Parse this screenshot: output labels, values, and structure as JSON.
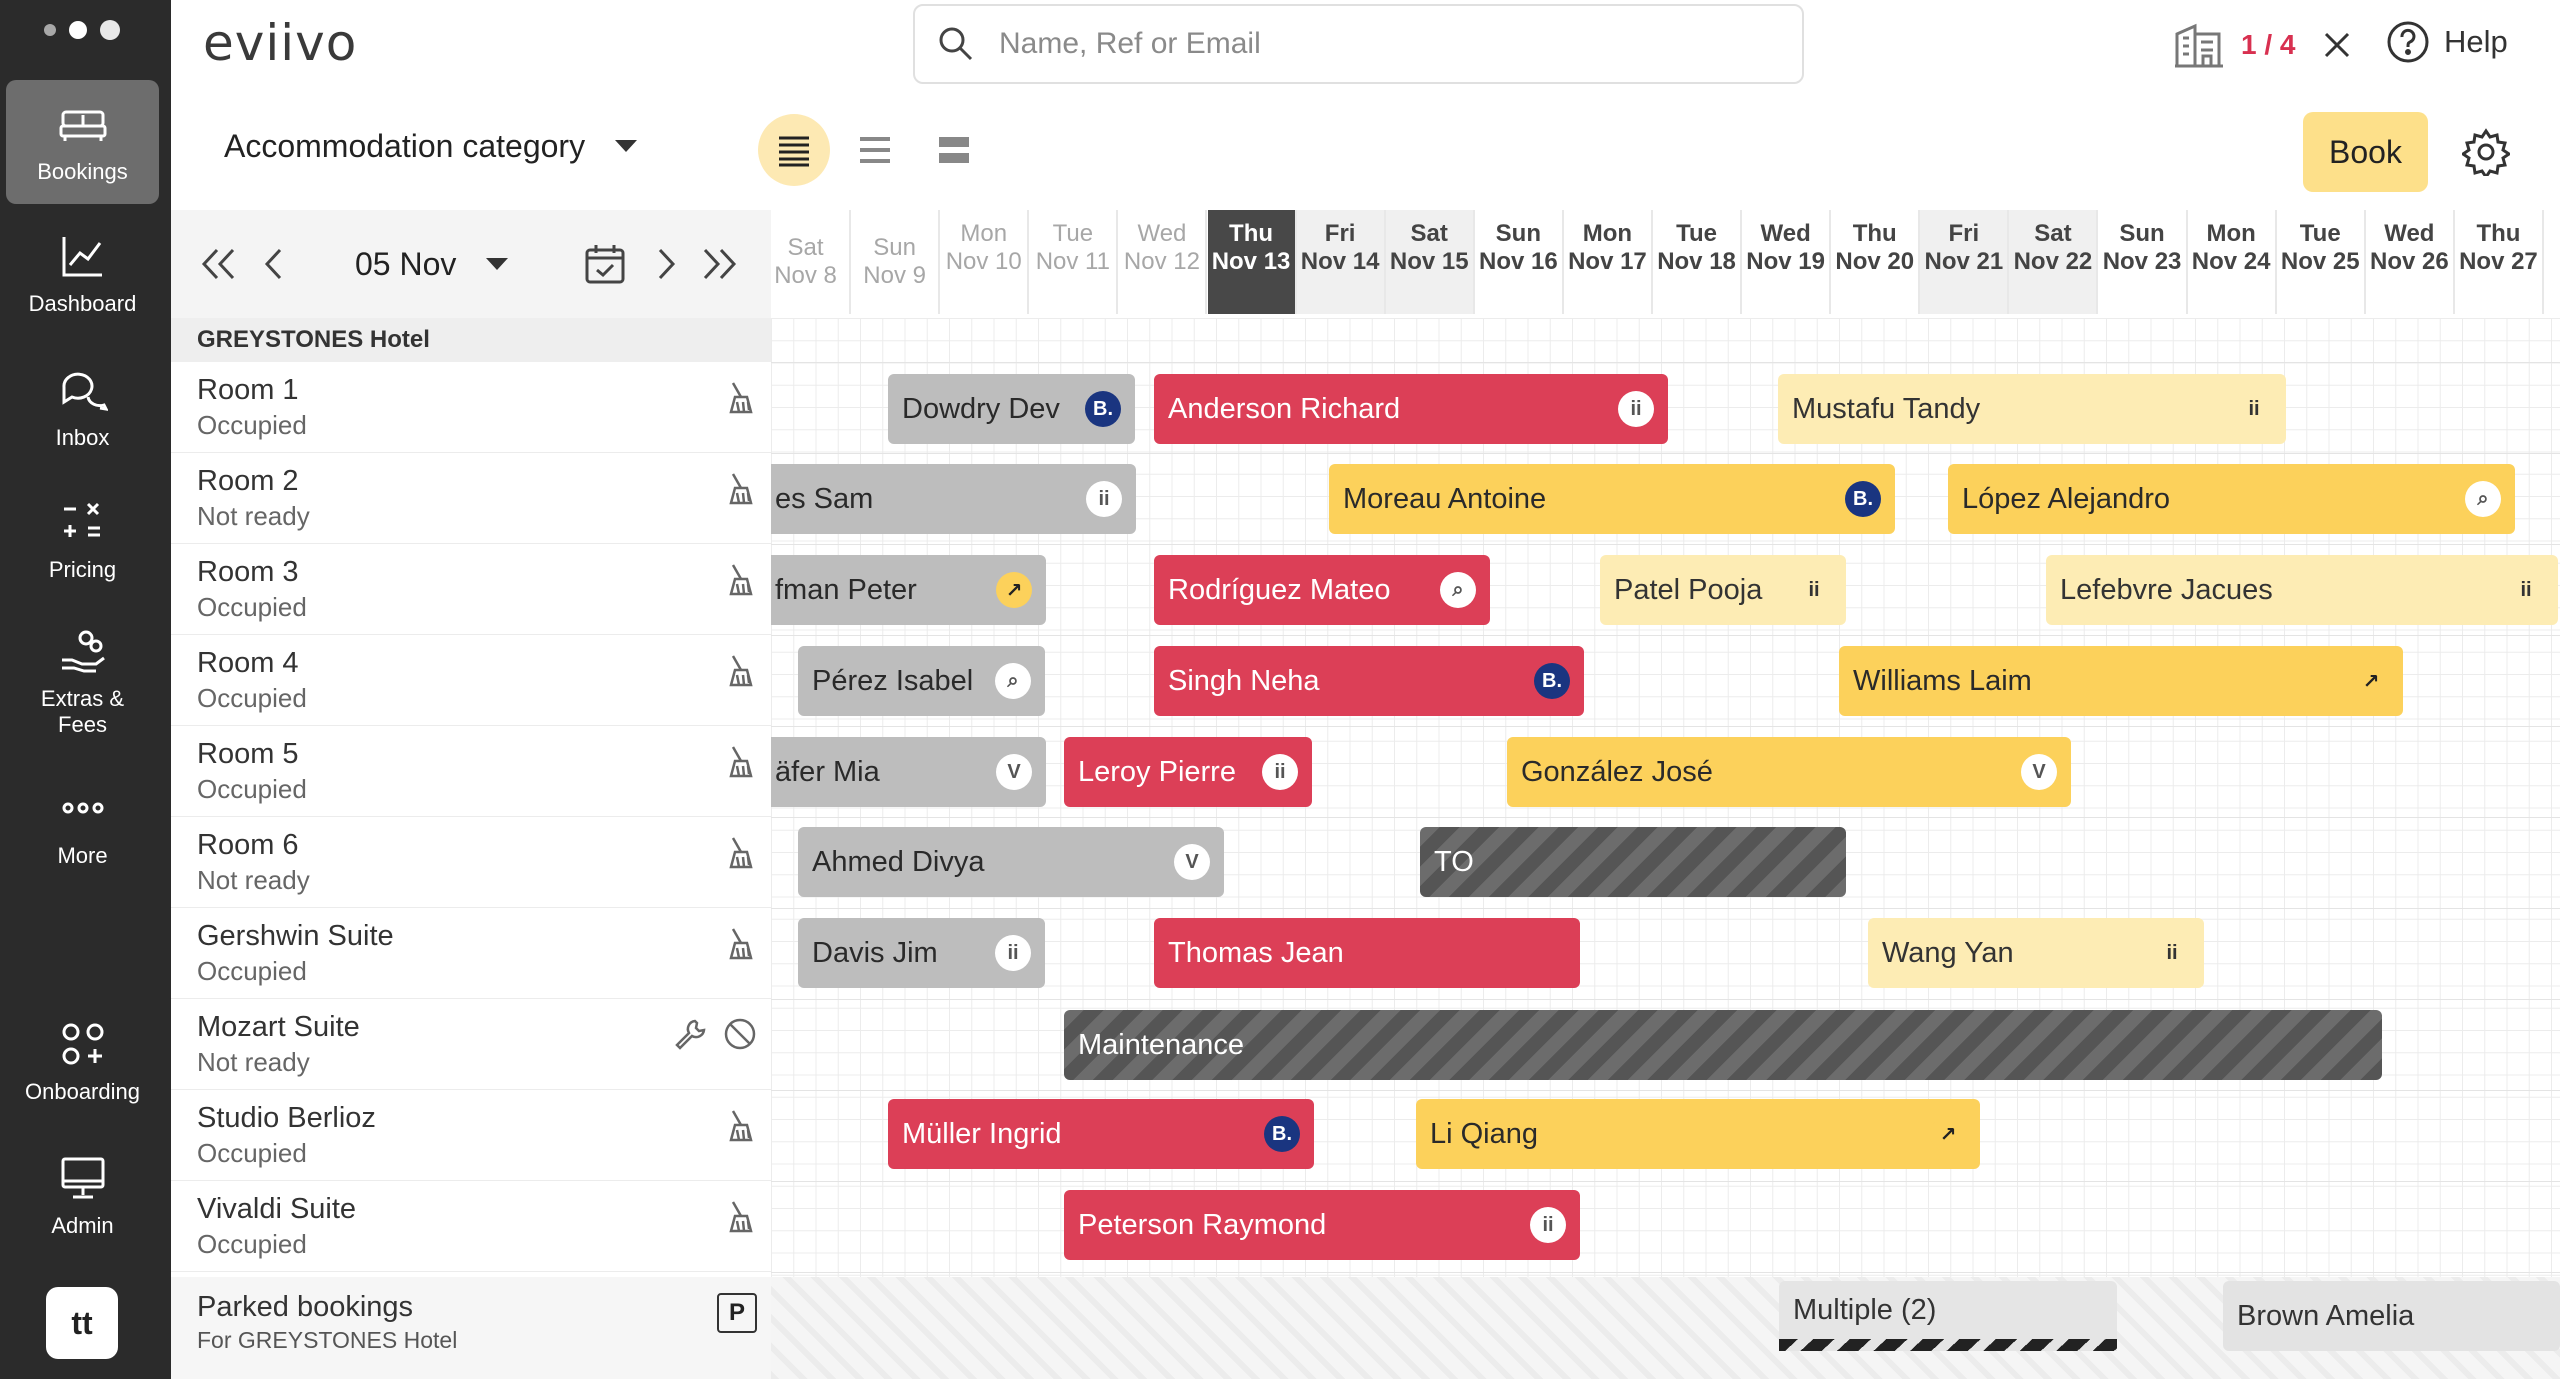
{
  "sidebar": {
    "items": [
      {
        "label": "Bookings"
      },
      {
        "label": "Dashboard"
      },
      {
        "label": "Inbox"
      },
      {
        "label": "Pricing"
      },
      {
        "label": "Extras &\nFees"
      },
      {
        "label": "More"
      },
      {
        "label": "Onboarding"
      },
      {
        "label": "Admin"
      }
    ],
    "avatar": "tt"
  },
  "header": {
    "logo": "eviivo",
    "search_placeholder": "Name, Ref or Email",
    "hotel_count": "1 / 4",
    "help_label": "Help"
  },
  "toolbar": {
    "category": "Accommodation category",
    "book_label": "Book"
  },
  "date_nav": {
    "current_date": "05 Nov"
  },
  "calendar": {
    "days": [
      {
        "dow": "Sat",
        "date": "Nov 8",
        "state": "past"
      },
      {
        "dow": "Sun",
        "date": "Nov 9",
        "state": "past"
      },
      {
        "dow": "Mon",
        "date": "Nov 10",
        "state": "past"
      },
      {
        "dow": "Tue",
        "date": "Nov 11",
        "state": "past"
      },
      {
        "dow": "Wed",
        "date": "Nov 12",
        "state": "past"
      },
      {
        "dow": "Thu",
        "date": "Nov 13",
        "state": "today"
      },
      {
        "dow": "Fri",
        "date": "Nov 14",
        "state": "weekend"
      },
      {
        "dow": "Sat",
        "date": "Nov 15",
        "state": "weekend"
      },
      {
        "dow": "Sun",
        "date": "Nov 16",
        "state": "future"
      },
      {
        "dow": "Mon",
        "date": "Nov 17",
        "state": "future"
      },
      {
        "dow": "Tue",
        "date": "Nov 18",
        "state": "future"
      },
      {
        "dow": "Wed",
        "date": "Nov 19",
        "state": "future"
      },
      {
        "dow": "Thu",
        "date": "Nov 20",
        "state": "future"
      },
      {
        "dow": "Fri",
        "date": "Nov 21",
        "state": "weekend"
      },
      {
        "dow": "Sat",
        "date": "Nov 22",
        "state": "weekend"
      },
      {
        "dow": "Sun",
        "date": "Nov 23",
        "state": "future"
      },
      {
        "dow": "Mon",
        "date": "Nov 24",
        "state": "future"
      },
      {
        "dow": "Tue",
        "date": "Nov 25",
        "state": "future"
      },
      {
        "dow": "Wed",
        "date": "Nov 26",
        "state": "future"
      },
      {
        "dow": "Thu",
        "date": "Nov 27",
        "state": "future"
      }
    ]
  },
  "rooms": {
    "hotel": "GREYSTONES Hotel",
    "list": [
      {
        "name": "Room 1",
        "status": "Occupied"
      },
      {
        "name": "Room 2",
        "status": "Not ready"
      },
      {
        "name": "Room 3",
        "status": "Occupied"
      },
      {
        "name": "Room 4",
        "status": "Occupied"
      },
      {
        "name": "Room 5",
        "status": "Occupied"
      },
      {
        "name": "Room 6",
        "status": "Not ready"
      },
      {
        "name": "Gershwin Suite",
        "status": "Occupied"
      },
      {
        "name": "Mozart Suite",
        "status": "Not ready"
      },
      {
        "name": "Studio Berlioz",
        "status": "Occupied"
      },
      {
        "name": "Vivaldi Suite",
        "status": "Occupied"
      }
    ],
    "parked": {
      "name": "Parked bookings",
      "status": "For GREYSTONES Hotel",
      "badge": "P"
    }
  },
  "bookings": [
    {
      "guest": "Dowdry Dev",
      "color": "gray",
      "badge": "B.",
      "badge_style": "bk"
    },
    {
      "guest": "Anderson Richard",
      "color": "red",
      "badge": "ii",
      "badge_style": "white"
    },
    {
      "guest": "Mustafu Tandy",
      "color": "lightyellow",
      "badge": "ii",
      "badge_style": "none"
    },
    {
      "guest": "es Sam",
      "color": "gray",
      "badge": "ii",
      "badge_style": "white"
    },
    {
      "guest": "Moreau Antoine",
      "color": "yellow",
      "badge": "B.",
      "badge_style": "bk"
    },
    {
      "guest": "López Alejandro",
      "color": "yellow",
      "badge": "⌕",
      "badge_style": "white"
    },
    {
      "guest": "fman Peter",
      "color": "gray",
      "badge": "↗",
      "badge_style": "yellow"
    },
    {
      "guest": "Rodríguez Mateo",
      "color": "red",
      "badge": "⌕",
      "badge_style": "white"
    },
    {
      "guest": "Patel Pooja",
      "color": "lightyellow",
      "badge": "ii",
      "badge_style": "none"
    },
    {
      "guest": "Lefebvre Jacues",
      "color": "lightyellow",
      "badge": "ii",
      "badge_style": "none"
    },
    {
      "guest": "Pérez Isabel",
      "color": "gray",
      "badge": "⌕",
      "badge_style": "white"
    },
    {
      "guest": "Singh Neha",
      "color": "red",
      "badge": "B.",
      "badge_style": "bk"
    },
    {
      "guest": "Williams Laim",
      "color": "yellow",
      "badge": "↗",
      "badge_style": "yellow"
    },
    {
      "guest": "äfer Mia",
      "color": "gray",
      "badge": "V",
      "badge_style": "white"
    },
    {
      "guest": "Leroy Pierre",
      "color": "red",
      "badge": "ii",
      "badge_style": "white"
    },
    {
      "guest": "González José",
      "color": "yellow",
      "badge": "V",
      "badge_style": "white"
    },
    {
      "guest": "Ahmed Divya",
      "color": "gray",
      "badge": "V",
      "badge_style": "white"
    },
    {
      "guest": "TO",
      "color": "hatch",
      "badge": "",
      "badge_style": "none"
    },
    {
      "guest": "Davis Jim",
      "color": "gray",
      "badge": "ii",
      "badge_style": "white"
    },
    {
      "guest": "Thomas Jean",
      "color": "red",
      "badge": "",
      "badge_style": "none"
    },
    {
      "guest": "Wang Yan",
      "color": "lightyellow",
      "badge": "ii",
      "badge_style": "none"
    },
    {
      "guest": "Maintenance",
      "color": "hatch",
      "badge": "",
      "badge_style": "none"
    },
    {
      "guest": "Müller Ingrid",
      "color": "red",
      "badge": "B.",
      "badge_style": "bk"
    },
    {
      "guest": "Li Qiang",
      "color": "yellow",
      "badge": "↗",
      "badge_style": "yellow"
    },
    {
      "guest": "Peterson Raymond",
      "color": "red",
      "badge": "ii",
      "badge_style": "white"
    },
    {
      "guest": "Multiple (2)",
      "color": "multi",
      "badge": "",
      "badge_style": "none"
    },
    {
      "guest": "Brown Amelia",
      "color": "light",
      "badge": "",
      "badge_style": "none"
    }
  ],
  "colors": {
    "red": "#dc3f57",
    "yellow": "#fcd15b",
    "light_yellow": "#fdecb4",
    "gray": "#bdbdbd",
    "booking_com_blue": "#1a3580",
    "hotel_count_red": "#d83050",
    "sidebar_bg": "#2b2b2b"
  }
}
